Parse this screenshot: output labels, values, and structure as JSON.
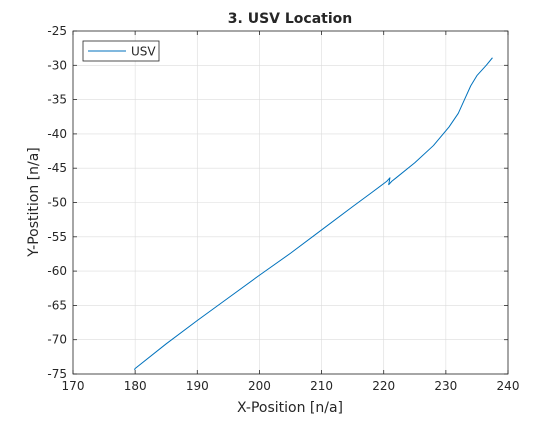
{
  "chart_data": {
    "type": "line",
    "title": "3. USV Location",
    "xlabel": "X-Position [n/a]",
    "ylabel": "Y-Postition [n/a]",
    "xlim": [
      170,
      240
    ],
    "ylim": [
      -75,
      -25
    ],
    "xticks": [
      170,
      180,
      190,
      200,
      210,
      220,
      230,
      240
    ],
    "yticks": [
      -75,
      -70,
      -65,
      -60,
      -55,
      -50,
      -45,
      -40,
      -35,
      -30,
      -25
    ],
    "grid": true,
    "legend_position": "top-left",
    "colors": {
      "series": "#0072BD",
      "axis": "#262626",
      "grid": "#dcdcdc"
    },
    "series": [
      {
        "name": "USV",
        "x": [
          179.9,
          180.0,
          185.0,
          190.0,
          195.0,
          200.0,
          205.0,
          210.0,
          215.0,
          218.0,
          220.5,
          221.0,
          220.8,
          221.3,
          222.0,
          225.0,
          228.0,
          230.5,
          232.0,
          233.0,
          234.0,
          235.0,
          236.5,
          237.5
        ],
        "y": [
          -74.4,
          -74.2,
          -70.6,
          -67.2,
          -63.9,
          -60.6,
          -57.4,
          -54.0,
          -50.6,
          -48.6,
          -46.9,
          -46.4,
          -47.4,
          -46.9,
          -46.4,
          -44.2,
          -41.7,
          -39.0,
          -37.0,
          -35.0,
          -33.0,
          -31.5,
          -30.0,
          -28.9
        ]
      }
    ]
  }
}
